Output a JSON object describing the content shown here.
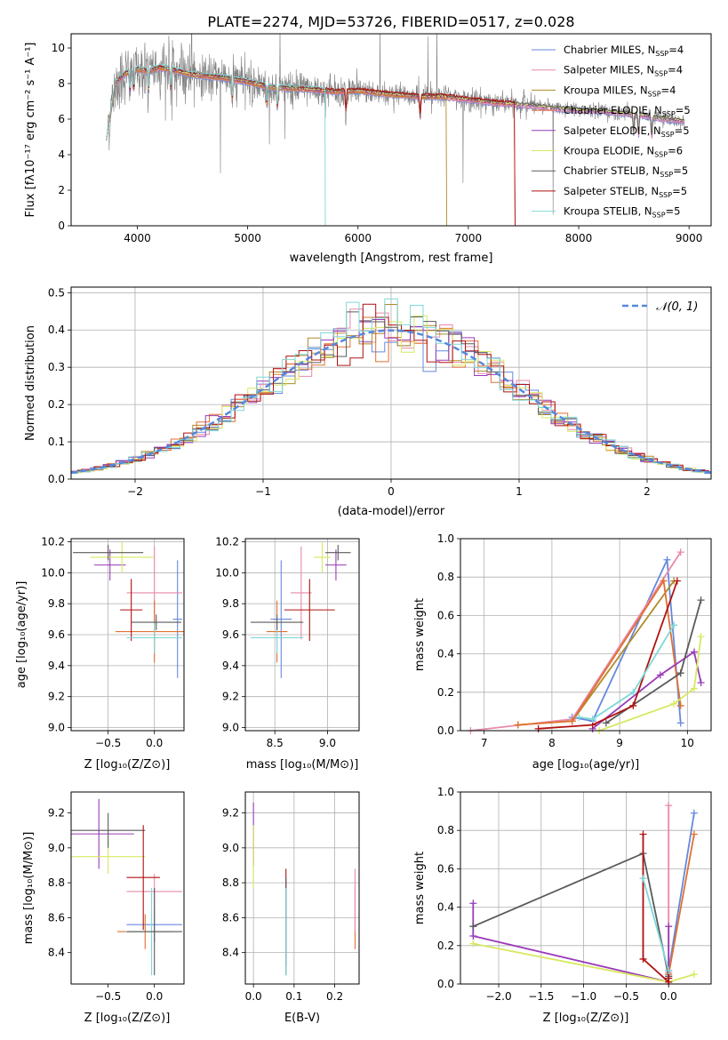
{
  "title": "PLATE=2274, MJD=53726, FIBERID=0517, z=0.028",
  "colors": {
    "Chabrier MILES": "#6688dd",
    "Salpeter MILES": "#e88aaa",
    "Kroupa MILES": "#b08a2a",
    "Chabrier ELODIE": "#e07030",
    "Salpeter ELODIE": "#9a3ab8",
    "Kroupa ELODIE": "#d8e860",
    "Chabrier STELIB": "#5a5a5a",
    "Salpeter STELIB": "#b01010",
    "Kroupa STELIB": "#7fd8d8"
  },
  "chart_data": [
    {
      "type": "line",
      "xlabel": "wavelength [Angstrom, rest frame]",
      "ylabel": "Flux [fλ10⁻¹⁷ erg cm⁻² s⁻¹ A⁻¹]",
      "xlim": [
        3400,
        9200
      ],
      "ylim": [
        0,
        10.8
      ],
      "xticks": [
        "4000",
        "5000",
        "6000",
        "7000",
        "8000",
        "9000"
      ],
      "yticks": [
        "0",
        "2",
        "4",
        "6",
        "8",
        "10"
      ],
      "legend_position": "top-right",
      "series": [
        {
          "name": "Chabrier MILES, N_SSP=4",
          "label_main": "Chabrier MILES, N",
          "label_sub": "SSP",
          "label_end": "=4"
        },
        {
          "name": "Salpeter MILES, N_SSP=4",
          "label_main": "Salpeter MILES, N",
          "label_sub": "SSP",
          "label_end": "=4"
        },
        {
          "name": "Kroupa MILES, N_SSP=4",
          "label_main": "Kroupa MILES, N",
          "label_sub": "SSP",
          "label_end": "=4"
        },
        {
          "name": "Chabrier ELODIE, N_SSP=5",
          "label_main": "Chabrier ELODIE, N",
          "label_sub": "SSP",
          "label_end": "=5"
        },
        {
          "name": "Salpeter ELODIE, N_SSP=5",
          "label_main": "Salpeter ELODIE, N",
          "label_sub": "SSP",
          "label_end": "=5"
        },
        {
          "name": "Kroupa ELODIE, N_SSP=6",
          "label_main": "Kroupa ELODIE, N",
          "label_sub": "SSP",
          "label_end": "=6"
        },
        {
          "name": "Chabrier STELIB, N_SSP=5",
          "label_main": "Chabrier STELIB, N",
          "label_sub": "SSP",
          "label_end": "=5"
        },
        {
          "name": "Salpeter STELIB, N_SSP=5",
          "label_main": "Salpeter STELIB, N",
          "label_sub": "SSP",
          "label_end": "=5"
        },
        {
          "name": "Kroupa STELIB, N_SSP=5",
          "label_main": "Kroupa STELIB, N",
          "label_sub": "SSP",
          "label_end": "=5"
        }
      ],
      "model_end_wavelength": {
        "Kroupa MILES": 6800,
        "Chabrier ELODIE": 7420,
        "Salpeter STELIB": 7420,
        "Kroupa STELIB": 5700
      },
      "data_start_wavelength": 3730,
      "data_end_wavelength": 8960,
      "anchors_wavelength": [
        3720,
        3750,
        3800,
        3900,
        4000,
        4100,
        4200,
        4300,
        4500,
        4800,
        5000,
        5200,
        5500,
        5800,
        6000,
        6200,
        6500,
        6800,
        7000,
        7200,
        7400,
        7600,
        7800,
        8000,
        8200,
        8500,
        8800,
        8960
      ],
      "anchors_flux": [
        5.8,
        6.0,
        8.0,
        8.6,
        8.8,
        8.7,
        8.9,
        8.8,
        8.5,
        8.3,
        8.1,
        7.8,
        7.7,
        7.55,
        7.6,
        7.45,
        7.3,
        7.25,
        7.1,
        6.95,
        6.85,
        6.75,
        6.6,
        6.5,
        6.45,
        6.3,
        6.0,
        5.9
      ]
    },
    {
      "type": "histogram",
      "xlabel": "(data-model)/error",
      "ylabel": "Normed distribution",
      "xlim": [
        -2.5,
        2.5
      ],
      "ylim": [
        0,
        0.515
      ],
      "xticks": [
        "−2",
        "−1",
        "0",
        "1",
        "2"
      ],
      "yticks": [
        "0.0",
        "0.1",
        "0.2",
        "0.3",
        "0.4",
        "0.5"
      ],
      "bin_width": 0.1,
      "legend": "𝒩(0, 1)",
      "legend_position": "top-right",
      "reference_curve": "normal(0, 1)"
    },
    {
      "type": "error_bar",
      "xlabel": "Z [log₁₀(Z/Z⊙)]",
      "ylabel": "age  [log₁₀(age/yr)]",
      "xlim": [
        -0.9,
        0.32
      ],
      "ylim": [
        8.98,
        10.22
      ],
      "xticks": [
        "−0.5",
        "0.0"
      ],
      "yticks": [
        "9.0",
        "9.2",
        "9.4",
        "9.6",
        "9.8",
        "10.0",
        "10.2"
      ],
      "points": [
        {
          "model": "Chabrier MILES",
          "x": 0.25,
          "xerr": 0.05,
          "y": 9.7,
          "yerr": 0.38
        },
        {
          "model": "Salpeter MILES",
          "x": 0.0,
          "xerr": 0.3,
          "y": 9.87,
          "yerr": 0.3
        },
        {
          "model": "Chabrier ELODIE",
          "x": 0.0,
          "xerr": 0.42,
          "y": 9.62,
          "yerr": 0.2
        },
        {
          "model": "Salpeter ELODIE",
          "x": -0.48,
          "xerr": 0.17,
          "y": 10.05,
          "yerr": 0.1
        },
        {
          "model": "Kroupa ELODIE",
          "x": -0.35,
          "xerr": 0.34,
          "y": 10.1,
          "yerr": 0.1
        },
        {
          "model": "Chabrier STELIB",
          "x": -0.5,
          "xerr": 0.38,
          "y": 10.13,
          "yerr": 0.05
        },
        {
          "model": "Salpeter STELIB",
          "x": -0.25,
          "xerr": 0.12,
          "y": 9.76,
          "yerr": 0.2
        },
        {
          "model": "Kroupa STELIB",
          "x": 0.0,
          "xerr": 0.3,
          "y": 9.58,
          "yerr": 0.1
        },
        {
          "model": "Chabrier STELIB",
          "x": 0.02,
          "xerr": 0.27,
          "y": 9.68,
          "yerr": 0.05
        }
      ]
    },
    {
      "type": "error_bar",
      "xlabel": "mass [log₁₀(M/M⊙)]",
      "xlim": [
        8.22,
        9.3
      ],
      "ylim": [
        8.98,
        10.22
      ],
      "xticks": [
        "8.5",
        "9.0"
      ],
      "yticks": [
        "9.0",
        "9.2",
        "9.4",
        "9.6",
        "9.8",
        "10.0",
        "10.2"
      ],
      "points": [
        {
          "model": "Chabrier MILES",
          "x": 8.56,
          "xerr": 0.1,
          "y": 9.7,
          "yerr": 0.38
        },
        {
          "model": "Salpeter MILES",
          "x": 8.75,
          "xerr": 0.1,
          "y": 9.87,
          "yerr": 0.3
        },
        {
          "model": "Chabrier ELODIE",
          "x": 8.52,
          "xerr": 0.1,
          "y": 9.62,
          "yerr": 0.2
        },
        {
          "model": "Salpeter ELODIE",
          "x": 9.08,
          "xerr": 0.1,
          "y": 10.05,
          "yerr": 0.1
        },
        {
          "model": "Kroupa ELODIE",
          "x": 8.95,
          "xerr": 0.08,
          "y": 10.1,
          "yerr": 0.1
        },
        {
          "model": "Chabrier STELIB",
          "x": 9.1,
          "xerr": 0.12,
          "y": 10.13,
          "yerr": 0.05
        },
        {
          "model": "Salpeter STELIB",
          "x": 8.83,
          "xerr": 0.24,
          "y": 9.76,
          "yerr": 0.2
        },
        {
          "model": "Kroupa STELIB",
          "x": 8.52,
          "xerr": 0.25,
          "y": 9.58,
          "yerr": 0.1
        },
        {
          "model": "Chabrier STELIB",
          "x": 8.52,
          "xerr": 0.25,
          "y": 9.68,
          "yerr": 0.05
        }
      ]
    },
    {
      "type": "line",
      "xlabel": "age  [log₁₀(age/yr)]",
      "ylabel": "mass weight",
      "xlim": [
        6.65,
        10.35
      ],
      "ylim": [
        0,
        1.0
      ],
      "xticks": [
        "7",
        "8",
        "9",
        "10"
      ],
      "yticks": [
        "0.0",
        "0.2",
        "0.4",
        "0.6",
        "0.8",
        "1.0"
      ],
      "series": [
        {
          "model": "Chabrier MILES",
          "x": [
            8.3,
            8.6,
            9.7,
            9.9
          ],
          "y": [
            0.07,
            0.05,
            0.89,
            0.04
          ]
        },
        {
          "model": "Salpeter MILES",
          "x": [
            6.8,
            8.3,
            9.9
          ],
          "y": [
            0.0,
            0.06,
            0.93
          ]
        },
        {
          "model": "Kroupa MILES",
          "x": [
            7.5,
            8.3,
            9.8
          ],
          "y": [
            0.03,
            0.05,
            0.78
          ]
        },
        {
          "model": "Chabrier ELODIE",
          "x": [
            7.5,
            8.3,
            9.65,
            9.9
          ],
          "y": [
            0.03,
            0.05,
            0.78,
            0.13
          ]
        },
        {
          "model": "Salpeter ELODIE",
          "x": [
            8.6,
            9.6,
            10.1,
            10.2
          ],
          "y": [
            0.01,
            0.29,
            0.41,
            0.25
          ]
        },
        {
          "model": "Kroupa ELODIE",
          "x": [
            8.7,
            9.8,
            10.1,
            10.2
          ],
          "y": [
            0.0,
            0.14,
            0.22,
            0.49
          ]
        },
        {
          "model": "Chabrier STELIB",
          "x": [
            8.8,
            9.9,
            10.2
          ],
          "y": [
            0.04,
            0.3,
            0.68
          ]
        },
        {
          "model": "Salpeter STELIB",
          "x": [
            7.8,
            8.6,
            9.2,
            9.85
          ],
          "y": [
            0.01,
            0.03,
            0.13,
            0.78
          ]
        },
        {
          "model": "Kroupa STELIB",
          "x": [
            8.4,
            8.6,
            9.2,
            9.8
          ],
          "y": [
            0.07,
            0.06,
            0.2,
            0.55
          ]
        }
      ]
    },
    {
      "type": "error_bar",
      "xlabel": "Z [log₁₀(Z/Z⊙)]",
      "ylabel": "mass [log₁₀(M/M⊙)]",
      "xlim": [
        -0.9,
        0.32
      ],
      "ylim": [
        8.22,
        9.32
      ],
      "xticks": [
        "−0.5",
        "0.0"
      ],
      "yticks": [
        "8.4",
        "8.6",
        "8.8",
        "9.0",
        "9.2"
      ],
      "points": [
        {
          "model": "Chabrier MILES",
          "x": 0.0,
          "xerr": 0.3,
          "y": 8.56,
          "yerr": 0.1
        },
        {
          "model": "Salpeter MILES",
          "x": 0.0,
          "xerr": 0.3,
          "y": 8.75,
          "yerr": 0.1
        },
        {
          "model": "Chabrier ELODIE",
          "x": -0.1,
          "xerr": 0.3,
          "y": 8.52,
          "yerr": 0.1
        },
        {
          "model": "Salpeter ELODIE",
          "x": -0.6,
          "xerr": 0.38,
          "y": 9.08,
          "yerr": 0.2
        },
        {
          "model": "Kroupa ELODIE",
          "x": -0.5,
          "xerr": 0.4,
          "y": 8.95,
          "yerr": 0.1
        },
        {
          "model": "Chabrier STELIB",
          "x": -0.5,
          "xerr": 0.4,
          "y": 9.1,
          "yerr": 0.1
        },
        {
          "model": "Salpeter STELIB",
          "x": -0.12,
          "xerr": 0.18,
          "y": 8.83,
          "yerr": 0.3
        },
        {
          "model": "Kroupa STELIB",
          "x": -0.03,
          "xerr": 0.28,
          "y": 8.52,
          "yerr": 0.25
        },
        {
          "model": "Chabrier STELIB",
          "x": 0.0,
          "xerr": 0.3,
          "y": 8.52,
          "yerr": 0.25
        }
      ]
    },
    {
      "type": "error_bar",
      "xlabel": "E(B-V)",
      "xlim": [
        -0.02,
        0.26
      ],
      "ylim": [
        8.22,
        9.32
      ],
      "xticks": [
        "0.0",
        "0.1",
        "0.2"
      ],
      "yticks": [
        "8.4",
        "8.6",
        "8.8",
        "9.0",
        "9.2"
      ],
      "points": [
        {
          "model": "Salpeter ELODIE",
          "x": 0.0,
          "y": 9.08,
          "yerr": 0.18
        },
        {
          "model": "Kroupa ELODIE",
          "x": 0.0,
          "y": 8.95,
          "yerr": 0.18
        },
        {
          "model": "Salpeter STELIB",
          "x": 0.08,
          "y": 8.6,
          "yerr": 0.28
        },
        {
          "model": "Chabrier STELIB",
          "x": 0.08,
          "y": 8.55,
          "yerr": 0.28
        },
        {
          "model": "Kroupa STELIB",
          "x": 0.08,
          "y": 8.52,
          "yerr": 0.25
        },
        {
          "model": "Chabrier ELODIE",
          "x": 0.25,
          "y": 8.6,
          "yerr": 0.18
        },
        {
          "model": "Salpeter MILES",
          "x": 0.25,
          "y": 8.7,
          "yerr": 0.18
        }
      ]
    },
    {
      "type": "line",
      "xlabel": "Z [log₁₀(Z/Z⊙)]",
      "ylabel": "mass weight",
      "xlim": [
        -2.45,
        0.5
      ],
      "ylim": [
        0,
        1.0
      ],
      "xticks": [
        "−2.0",
        "−1.5",
        "−1.0",
        "−0.5",
        "0.0"
      ],
      "yticks": [
        "0.0",
        "0.2",
        "0.4",
        "0.6",
        "0.8",
        "1.0"
      ],
      "series": [
        {
          "model": "Chabrier MILES",
          "x": [
            0.3,
            0.0,
            0.0
          ],
          "y": [
            0.89,
            0.07,
            0.04
          ]
        },
        {
          "model": "Salpeter MILES",
          "x": [
            0.0,
            0.0
          ],
          "y": [
            0.93,
            0.06
          ]
        },
        {
          "model": "Chabrier ELODIE",
          "x": [
            0.3,
            0.0,
            0.0
          ],
          "y": [
            0.78,
            0.05,
            0.03
          ]
        },
        {
          "model": "Salpeter ELODIE",
          "x": [
            -2.3,
            -2.3,
            0.0,
            0.0
          ],
          "y": [
            0.42,
            0.25,
            0.01,
            0.3
          ]
        },
        {
          "model": "Kroupa ELODIE",
          "x": [
            -2.3,
            0.0,
            0.3
          ],
          "y": [
            0.21,
            0.01,
            0.05
          ]
        },
        {
          "model": "Chabrier STELIB",
          "x": [
            -2.3,
            -0.3,
            0.0
          ],
          "y": [
            0.3,
            0.68,
            0.04
          ]
        },
        {
          "model": "Salpeter STELIB",
          "x": [
            -0.3,
            -0.3,
            0.0,
            0.0
          ],
          "y": [
            0.78,
            0.13,
            0.01,
            0.03
          ]
        },
        {
          "model": "Kroupa STELIB",
          "x": [
            -0.3,
            0.0
          ],
          "y": [
            0.55,
            0.07
          ]
        }
      ]
    }
  ]
}
